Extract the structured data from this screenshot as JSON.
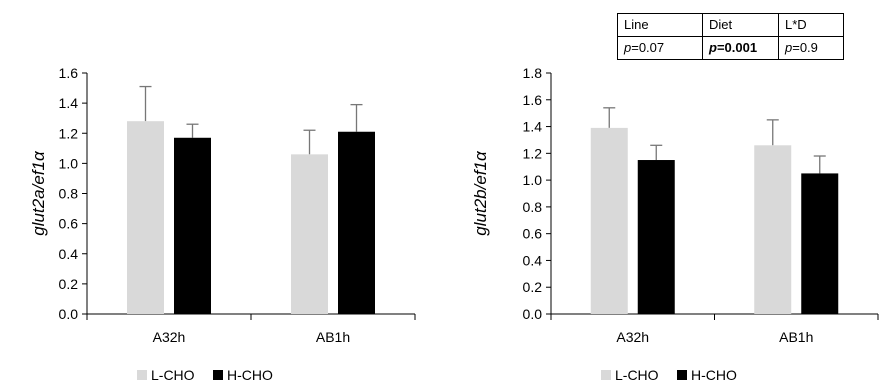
{
  "stats_table": {
    "headers": [
      "Line",
      "Diet",
      "L*D"
    ],
    "cells": [
      {
        "p": "p",
        "value": "=0.07",
        "bold": false
      },
      {
        "p": "p",
        "value": "=0.001",
        "bold": true
      },
      {
        "p": "p",
        "value": "=0.9",
        "bold": false
      }
    ]
  },
  "chart_data": [
    {
      "type": "bar",
      "ylabel": "glut2a/ef1α",
      "categories": [
        "A32h",
        "AB1h"
      ],
      "ylim": [
        0,
        1.6
      ],
      "yticks": [
        "0.0",
        "0.2",
        "0.4",
        "0.6",
        "0.8",
        "1.0",
        "1.2",
        "1.4",
        "1.6"
      ],
      "series": [
        {
          "name": "L-CHO",
          "color": "#d9d9d9",
          "values": [
            1.28,
            1.06
          ],
          "errors": [
            0.23,
            0.16
          ]
        },
        {
          "name": "H-CHO",
          "color": "#000000",
          "values": [
            1.17,
            1.21
          ],
          "errors": [
            0.09,
            0.18
          ]
        }
      ],
      "legend": "bottom-left"
    },
    {
      "type": "bar",
      "ylabel": "glut2b/ef1α",
      "categories": [
        "A32h",
        "AB1h"
      ],
      "ylim": [
        0,
        1.8
      ],
      "yticks": [
        "0.0",
        "0.2",
        "0.4",
        "0.6",
        "0.8",
        "1.0",
        "1.2",
        "1.4",
        "1.6",
        "1.8"
      ],
      "series": [
        {
          "name": "L-CHO",
          "color": "#d9d9d9",
          "values": [
            1.39,
            1.26
          ],
          "errors": [
            0.15,
            0.19
          ]
        },
        {
          "name": "H-CHO",
          "color": "#000000",
          "values": [
            1.15,
            1.05
          ],
          "errors": [
            0.11,
            0.13
          ]
        }
      ],
      "legend": "bottom-left"
    }
  ]
}
